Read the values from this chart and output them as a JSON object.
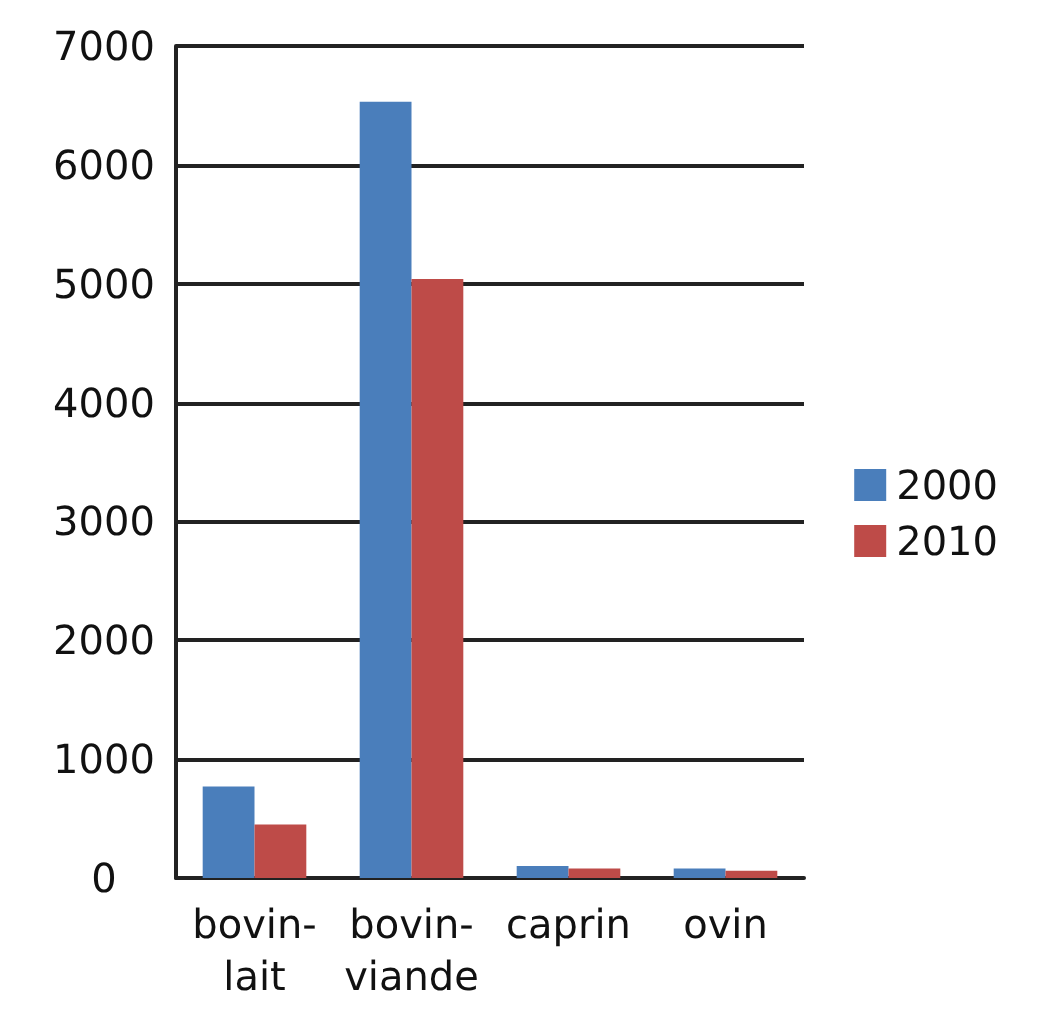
{
  "chart_data": {
    "type": "bar",
    "categories": [
      "bovin-lait",
      "bovin-viande",
      "caprin",
      "ovin"
    ],
    "series": [
      {
        "name": "2000",
        "color": "#4a7ebb",
        "values": [
          770,
          6530,
          100,
          80
        ]
      },
      {
        "name": "2010",
        "color": "#be4b48",
        "values": [
          450,
          5040,
          80,
          60
        ]
      }
    ],
    "ylim": [
      0,
      7000
    ],
    "yticks": [
      0,
      1000,
      2000,
      3000,
      4000,
      5000,
      6000,
      7000
    ],
    "grid": "y",
    "legend": "right"
  }
}
